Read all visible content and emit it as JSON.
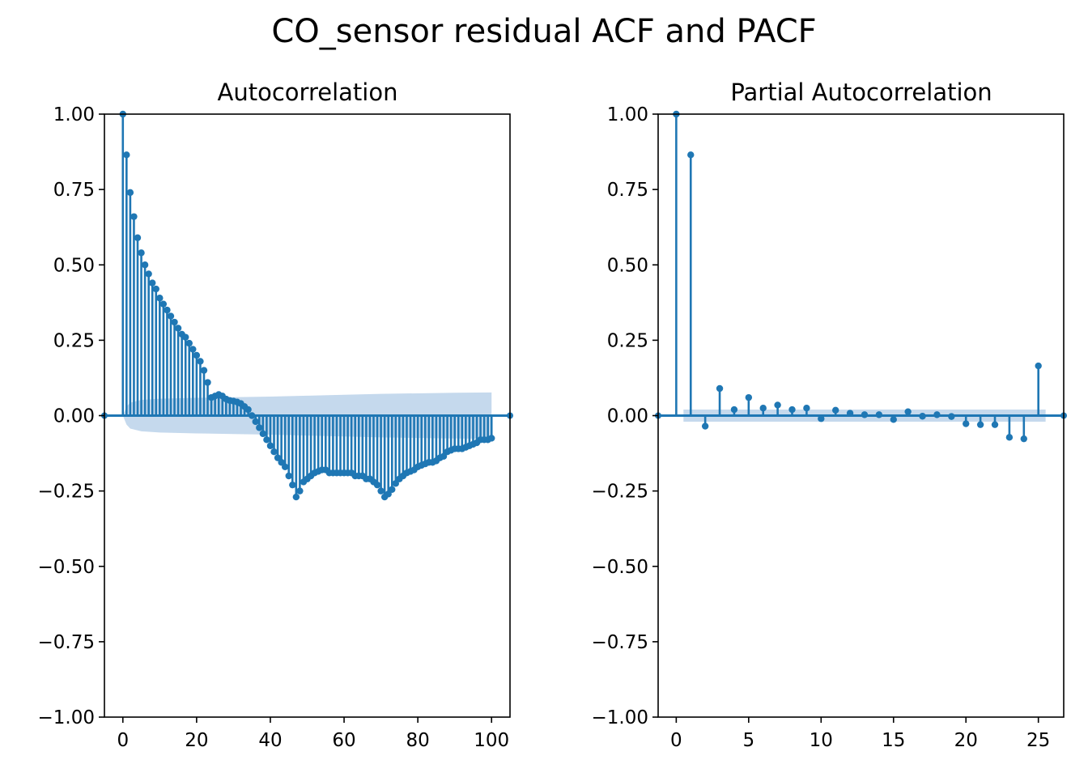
{
  "figure": {
    "title": "CO_sensor residual ACF and PACF"
  },
  "style": {
    "stem_color": "#1f77b4",
    "band_color": "#c5d9ed"
  },
  "chart_data": [
    {
      "type": "stem",
      "title": "Autocorrelation",
      "xlim": [
        -5,
        105
      ],
      "ylim": [
        -1.0,
        1.0
      ],
      "xticks": [
        "0",
        "20",
        "40",
        "60",
        "80",
        "100"
      ],
      "xtick_values": [
        0,
        20,
        40,
        60,
        80,
        100
      ],
      "yticks": [
        "1.00",
        "0.75",
        "0.50",
        "0.25",
        "0.00",
        "−0.25",
        "−0.50",
        "−0.75",
        "−1.00"
      ],
      "ytick_values": [
        1.0,
        0.75,
        0.5,
        0.25,
        0.0,
        -0.25,
        -0.5,
        -0.75,
        -1.0
      ],
      "lags": [
        0,
        1,
        2,
        3,
        4,
        5,
        6,
        7,
        8,
        9,
        10,
        11,
        12,
        13,
        14,
        15,
        16,
        17,
        18,
        19,
        20,
        21,
        22,
        23,
        24,
        25,
        26,
        27,
        28,
        29,
        30,
        31,
        32,
        33,
        34,
        35,
        36,
        37,
        38,
        39,
        40,
        41,
        42,
        43,
        44,
        45,
        46,
        47,
        48,
        49,
        50,
        51,
        52,
        53,
        54,
        55,
        56,
        57,
        58,
        59,
        60,
        61,
        62,
        63,
        64,
        65,
        66,
        67,
        68,
        69,
        70,
        71,
        72,
        73,
        74,
        75,
        76,
        77,
        78,
        79,
        80,
        81,
        82,
        83,
        84,
        85,
        86,
        87,
        88,
        89,
        90,
        91,
        92,
        93,
        94,
        95,
        96,
        97,
        98,
        99,
        100
      ],
      "values": [
        1.0,
        0.865,
        0.74,
        0.66,
        0.59,
        0.54,
        0.5,
        0.47,
        0.44,
        0.42,
        0.39,
        0.37,
        0.35,
        0.33,
        0.31,
        0.29,
        0.27,
        0.26,
        0.24,
        0.22,
        0.2,
        0.18,
        0.15,
        0.11,
        0.06,
        0.065,
        0.07,
        0.065,
        0.055,
        0.05,
        0.048,
        0.045,
        0.04,
        0.03,
        0.02,
        0.0,
        -0.02,
        -0.04,
        -0.06,
        -0.08,
        -0.1,
        -0.12,
        -0.14,
        -0.155,
        -0.17,
        -0.2,
        -0.23,
        -0.27,
        -0.25,
        -0.22,
        -0.21,
        -0.2,
        -0.19,
        -0.185,
        -0.18,
        -0.18,
        -0.19,
        -0.19,
        -0.19,
        -0.19,
        -0.19,
        -0.19,
        -0.19,
        -0.2,
        -0.2,
        -0.2,
        -0.21,
        -0.21,
        -0.22,
        -0.23,
        -0.25,
        -0.27,
        -0.26,
        -0.245,
        -0.225,
        -0.21,
        -0.2,
        -0.19,
        -0.185,
        -0.18,
        -0.17,
        -0.165,
        -0.16,
        -0.155,
        -0.155,
        -0.15,
        -0.14,
        -0.135,
        -0.12,
        -0.115,
        -0.11,
        -0.11,
        -0.11,
        -0.105,
        -0.1,
        -0.095,
        -0.09,
        -0.08,
        -0.08,
        -0.08,
        -0.075
      ],
      "confidence_band": {
        "lags": [
          0,
          1,
          2,
          5,
          10,
          20,
          30,
          40,
          50,
          60,
          70,
          80,
          90,
          100
        ],
        "upper": [
          0.0,
          0.03,
          0.043,
          0.052,
          0.056,
          0.059,
          0.061,
          0.063,
          0.066,
          0.069,
          0.072,
          0.074,
          0.076,
          0.077
        ],
        "lower": [
          0.0,
          -0.03,
          -0.043,
          -0.052,
          -0.056,
          -0.059,
          -0.061,
          -0.063,
          -0.066,
          -0.069,
          -0.072,
          -0.074,
          -0.076,
          -0.077
        ]
      }
    },
    {
      "type": "stem",
      "title": "Partial Autocorrelation",
      "xlim": [
        -1.25,
        26.75
      ],
      "ylim": [
        -1.0,
        1.0
      ],
      "xticks": [
        "0",
        "5",
        "10",
        "15",
        "20",
        "25"
      ],
      "xtick_values": [
        0,
        5,
        10,
        15,
        20,
        25
      ],
      "yticks": [
        "1.00",
        "0.75",
        "0.50",
        "0.25",
        "0.00",
        "−0.25",
        "−0.50",
        "−0.75",
        "−1.00"
      ],
      "ytick_values": [
        1.0,
        0.75,
        0.5,
        0.25,
        0.0,
        -0.25,
        -0.5,
        -0.75,
        -1.0
      ],
      "lags": [
        0,
        1,
        2,
        3,
        4,
        5,
        6,
        7,
        8,
        9,
        10,
        11,
        12,
        13,
        14,
        15,
        16,
        17,
        18,
        19,
        20,
        21,
        22,
        23,
        24,
        25
      ],
      "values": [
        1.0,
        0.865,
        -0.035,
        0.09,
        0.02,
        0.06,
        0.025,
        0.035,
        0.02,
        0.025,
        -0.01,
        0.018,
        0.008,
        0.003,
        0.003,
        -0.013,
        0.013,
        -0.002,
        0.003,
        -0.003,
        -0.027,
        -0.03,
        -0.03,
        -0.072,
        -0.077,
        0.165
      ],
      "confidence_band": {
        "lags": [
          0.5,
          25.5
        ],
        "upper": [
          0.02,
          0.02
        ],
        "lower": [
          -0.02,
          -0.02
        ]
      }
    }
  ]
}
